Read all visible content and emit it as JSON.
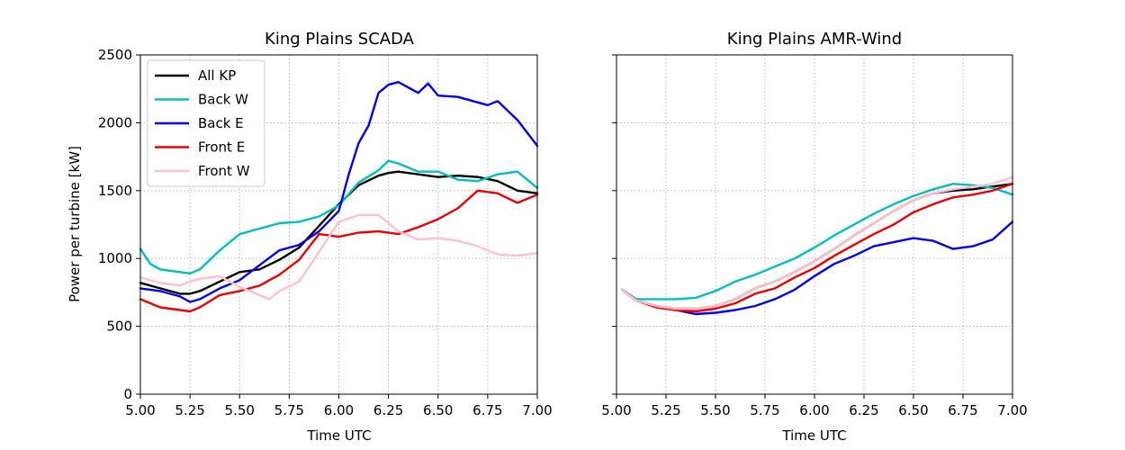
{
  "chart_data": [
    {
      "type": "line",
      "title": "King Plains SCADA",
      "xlabel": "Time UTC",
      "ylabel": "Power per turbine [kW]",
      "xlim": [
        5.0,
        7.0
      ],
      "ylim": [
        0,
        2500
      ],
      "xticks": [
        "5.00",
        "5.25",
        "5.50",
        "5.75",
        "6.00",
        "6.25",
        "6.50",
        "6.75",
        "7.00"
      ],
      "yticks": [
        "0",
        "500",
        "1000",
        "1500",
        "2000",
        "2500"
      ],
      "grid": true,
      "legend": "top-left",
      "series": [
        {
          "name": "All KP",
          "color": "#000000",
          "x": [
            5.0,
            5.1,
            5.2,
            5.25,
            5.3,
            5.4,
            5.5,
            5.6,
            5.7,
            5.8,
            5.9,
            6.0,
            6.1,
            6.2,
            6.25,
            6.3,
            6.4,
            6.5,
            6.6,
            6.7,
            6.8,
            6.9,
            7.0
          ],
          "y": [
            820,
            780,
            740,
            740,
            760,
            830,
            900,
            920,
            990,
            1080,
            1240,
            1400,
            1540,
            1610,
            1630,
            1640,
            1620,
            1600,
            1610,
            1600,
            1570,
            1500,
            1480
          ]
        },
        {
          "name": "Back W",
          "color": "#00bfbf",
          "x": [
            5.0,
            5.05,
            5.1,
            5.2,
            5.25,
            5.3,
            5.4,
            5.5,
            5.6,
            5.7,
            5.8,
            5.9,
            6.0,
            6.1,
            6.2,
            6.25,
            6.3,
            6.4,
            6.5,
            6.6,
            6.7,
            6.8,
            6.9,
            7.0
          ],
          "y": [
            1070,
            960,
            920,
            900,
            890,
            920,
            1060,
            1180,
            1220,
            1260,
            1270,
            1310,
            1390,
            1560,
            1650,
            1720,
            1700,
            1640,
            1640,
            1580,
            1570,
            1620,
            1640,
            1520
          ]
        },
        {
          "name": "Back E",
          "color": "#0000ee",
          "x": [
            5.0,
            5.1,
            5.2,
            5.25,
            5.3,
            5.4,
            5.5,
            5.6,
            5.7,
            5.8,
            5.9,
            6.0,
            6.05,
            6.1,
            6.15,
            6.2,
            6.25,
            6.3,
            6.4,
            6.45,
            6.5,
            6.6,
            6.7,
            6.75,
            6.8,
            6.9,
            7.0
          ],
          "y": [
            780,
            760,
            720,
            680,
            700,
            780,
            840,
            950,
            1060,
            1100,
            1200,
            1350,
            1620,
            1850,
            1980,
            2220,
            2280,
            2300,
            2220,
            2290,
            2200,
            2190,
            2150,
            2130,
            2160,
            2020,
            1830
          ]
        },
        {
          "name": "Front E",
          "color": "#ee0000",
          "x": [
            5.0,
            5.1,
            5.2,
            5.25,
            5.3,
            5.4,
            5.5,
            5.6,
            5.7,
            5.8,
            5.9,
            6.0,
            6.1,
            6.2,
            6.3,
            6.4,
            6.5,
            6.6,
            6.7,
            6.8,
            6.9,
            7.0
          ],
          "y": [
            700,
            640,
            620,
            610,
            640,
            730,
            760,
            800,
            880,
            990,
            1180,
            1160,
            1190,
            1200,
            1180,
            1230,
            1290,
            1370,
            1500,
            1480,
            1410,
            1470
          ]
        },
        {
          "name": "Front W",
          "color": "#ffc0cb",
          "x": [
            5.0,
            5.1,
            5.2,
            5.25,
            5.3,
            5.4,
            5.5,
            5.6,
            5.65,
            5.7,
            5.8,
            5.9,
            6.0,
            6.1,
            6.2,
            6.3,
            6.4,
            6.5,
            6.6,
            6.7,
            6.8,
            6.9,
            7.0
          ],
          "y": [
            860,
            820,
            800,
            830,
            850,
            870,
            790,
            730,
            700,
            760,
            830,
            1050,
            1270,
            1320,
            1320,
            1200,
            1140,
            1150,
            1130,
            1090,
            1030,
            1020,
            1040
          ]
        }
      ]
    },
    {
      "type": "line",
      "title": "King Plains AMR-Wind",
      "xlabel": "Time UTC",
      "ylabel": "",
      "xlim": [
        5.0,
        7.0
      ],
      "ylim": [
        0,
        2500
      ],
      "xticks": [
        "5.00",
        "5.25",
        "5.50",
        "5.75",
        "6.00",
        "6.25",
        "6.50",
        "6.75",
        "7.00"
      ],
      "yticks": [],
      "grid": true,
      "series": [
        {
          "name": "",
          "color": "#000000",
          "x": [
            5.03,
            5.1,
            5.2,
            5.3,
            5.4,
            5.5,
            5.6,
            5.7,
            5.8,
            5.9,
            6.0,
            6.1,
            6.2,
            6.3,
            6.4,
            6.5,
            6.6,
            6.7,
            6.8,
            6.9,
            7.0
          ],
          "y": [
            770,
            690,
            650,
            630,
            630,
            650,
            700,
            780,
            830,
            900,
            980,
            1070,
            1170,
            1260,
            1350,
            1430,
            1480,
            1500,
            1510,
            1530,
            1550
          ]
        },
        {
          "name": "",
          "color": "#00bfbf",
          "x": [
            5.03,
            5.1,
            5.2,
            5.3,
            5.4,
            5.5,
            5.6,
            5.7,
            5.8,
            5.9,
            6.0,
            6.1,
            6.2,
            6.3,
            6.4,
            6.5,
            6.6,
            6.7,
            6.8,
            6.9,
            7.0
          ],
          "y": [
            770,
            700,
            700,
            700,
            710,
            760,
            830,
            880,
            940,
            1000,
            1080,
            1170,
            1250,
            1330,
            1400,
            1460,
            1510,
            1550,
            1540,
            1520,
            1470
          ]
        },
        {
          "name": "",
          "color": "#0000ee",
          "x": [
            5.03,
            5.1,
            5.2,
            5.3,
            5.4,
            5.5,
            5.6,
            5.7,
            5.8,
            5.9,
            6.0,
            6.1,
            6.2,
            6.3,
            6.4,
            6.5,
            6.6,
            6.7,
            6.8,
            6.9,
            7.0
          ],
          "y": [
            770,
            690,
            650,
            620,
            590,
            600,
            620,
            650,
            700,
            770,
            870,
            960,
            1020,
            1090,
            1120,
            1150,
            1130,
            1070,
            1090,
            1140,
            1270
          ]
        },
        {
          "name": "",
          "color": "#ee0000",
          "x": [
            5.03,
            5.1,
            5.2,
            5.3,
            5.4,
            5.5,
            5.6,
            5.7,
            5.8,
            5.9,
            6.0,
            6.1,
            6.2,
            6.3,
            6.4,
            6.5,
            6.6,
            6.7,
            6.8,
            6.9,
            7.0
          ],
          "y": [
            770,
            690,
            640,
            620,
            610,
            630,
            670,
            740,
            780,
            860,
            930,
            1020,
            1100,
            1180,
            1250,
            1340,
            1400,
            1450,
            1470,
            1500,
            1550
          ]
        },
        {
          "name": "",
          "color": "#ffc0cb",
          "x": [
            5.03,
            5.1,
            5.2,
            5.3,
            5.4,
            5.5,
            5.6,
            5.7,
            5.8,
            5.9,
            6.0,
            6.1,
            6.2,
            6.3,
            6.4,
            6.5,
            6.6,
            6.7,
            6.8,
            6.9,
            7.0
          ],
          "y": [
            770,
            690,
            650,
            630,
            630,
            650,
            700,
            780,
            830,
            900,
            980,
            1070,
            1170,
            1260,
            1350,
            1430,
            1480,
            1510,
            1530,
            1550,
            1600
          ]
        }
      ]
    }
  ]
}
